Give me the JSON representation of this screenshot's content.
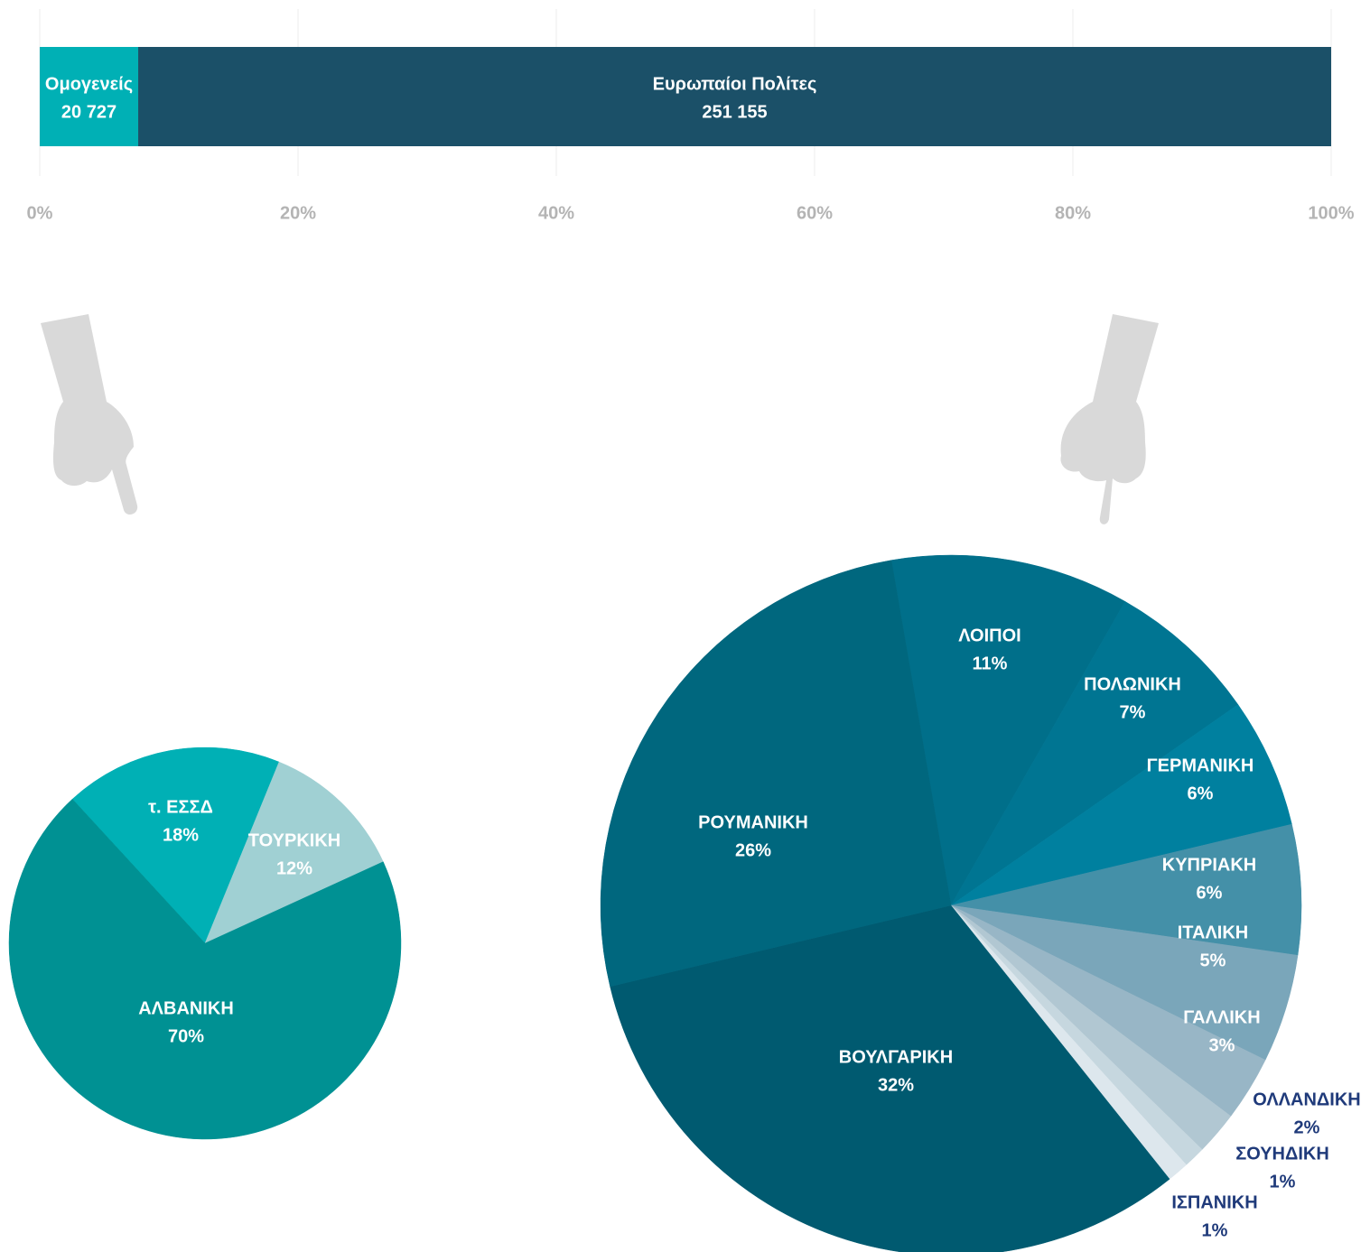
{
  "chart_data": [
    {
      "type": "stacked_percent_bar",
      "orientation": "horizontal",
      "series": [
        {
          "name": "Ομογενείς",
          "color": "#00b0b5",
          "values": [
            20727
          ],
          "value_labels": [
            "20 727"
          ]
        },
        {
          "name": "Ευρωπαίοι Πολίτες",
          "color": "#1b5068",
          "values": [
            251155
          ],
          "value_labels": [
            "251 155"
          ]
        }
      ],
      "xlim": [
        0,
        100
      ],
      "xticks": [
        {
          "value": 0,
          "label": "0%"
        },
        {
          "value": 20,
          "label": "20%"
        },
        {
          "value": 40,
          "label": "40%"
        },
        {
          "value": 60,
          "label": "60%"
        },
        {
          "value": 80,
          "label": "80%"
        },
        {
          "value": 100,
          "label": "100%"
        }
      ],
      "grid": true
    },
    {
      "type": "pie",
      "categories": [
        "τ. ΕΣΣΔ",
        "ΤΟΥΡΚΙΚΗ",
        "ΑΛΒΑΝΙΚΗ"
      ],
      "values": [
        18,
        12,
        70
      ],
      "value_labels": [
        "18%",
        "12%",
        "70%"
      ],
      "colors": [
        "#00b0b5",
        "#a0d0d3",
        "#009193"
      ]
    },
    {
      "type": "pie",
      "categories": [
        "ΛΟΙΠΟΙ",
        "ΠΟΛΩΝΙΚΗ",
        "ΓΕΡΜΑΝΙΚΗ",
        "ΚΥΠΡΙΑΚΗ",
        "ΙΤΑΛΙΚΗ",
        "ΓΑΛΛΙΚΗ",
        "ΟΛΛΑΝΔΙΚΗ",
        "ΣΟΥΗΔΙΚΗ",
        "ΙΣΠΑΝΙΚΗ",
        "ΒΟΥΛΓΑΡΙΚΗ",
        "ΡΟΥΜΑΝΙΚΗ"
      ],
      "values": [
        11,
        7,
        6,
        6,
        5,
        3,
        2,
        1,
        1,
        32,
        26
      ],
      "value_labels": [
        "11%",
        "7%",
        "6%",
        "6%",
        "5%",
        "3%",
        "2%",
        "1%",
        "1%",
        "32%",
        "26%"
      ],
      "colors": [
        "#006f8a",
        "#007592",
        "#00809f",
        "#4490a8",
        "#7aa6ba",
        "#98b6c6",
        "#b1c7d2",
        "#c6d7df",
        "#dde7ed",
        "#005a70",
        "#00677e"
      ]
    }
  ]
}
